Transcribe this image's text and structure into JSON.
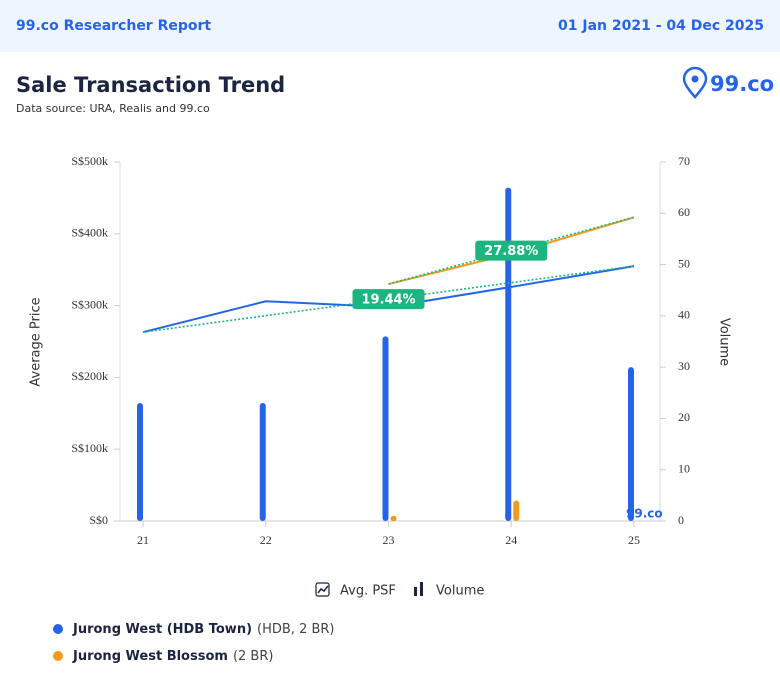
{
  "header": {
    "title": "99.co Researcher Report",
    "date_range": "01 Jan 2021 - 04 Dec 2025"
  },
  "logo": "99.co",
  "chart_data": {
    "type": "bar-line",
    "title": "Sale Transaction Trend",
    "subtitle": "Data source: URA, Realis and 99.co",
    "categories": [
      "21",
      "22",
      "23",
      "24",
      "25"
    ],
    "series": [
      {
        "name": "Jurong West (HDB Town)",
        "detail": "(HDB, 2 BR)",
        "color": "#2563eb",
        "values": [
          263000,
          306000,
          298000,
          326000,
          355000
        ],
        "volume": [
          23,
          23,
          36,
          65,
          30
        ],
        "trend_label": "19.44%"
      },
      {
        "name": "Jurong West Blossom",
        "detail": "(2 BR)",
        "color": "#f29a1a",
        "values": [
          null,
          null,
          330000,
          372000,
          423000
        ],
        "volume": [
          null,
          null,
          1,
          4,
          null
        ],
        "trend_label": "27.88%"
      }
    ],
    "trend_color": "#1db57f",
    "ylabel": "Average Price",
    "y2label": "Volume",
    "ylim": [
      0,
      500000
    ],
    "yticks": [
      {
        "value": 0,
        "label": "S$0"
      },
      {
        "value": 100000,
        "label": "S$100k"
      },
      {
        "value": 200000,
        "label": "S$200k"
      },
      {
        "value": 300000,
        "label": "S$300k"
      },
      {
        "value": 400000,
        "label": "S$400k"
      },
      {
        "value": 500000,
        "label": "S$500k"
      }
    ],
    "y2lim": [
      0,
      70
    ],
    "y2ticks": [
      0,
      10,
      20,
      30,
      40,
      50,
      60,
      70
    ],
    "legend_line": "Avg. PSF",
    "legend_bar": "Volume",
    "watermark": "99.co"
  }
}
